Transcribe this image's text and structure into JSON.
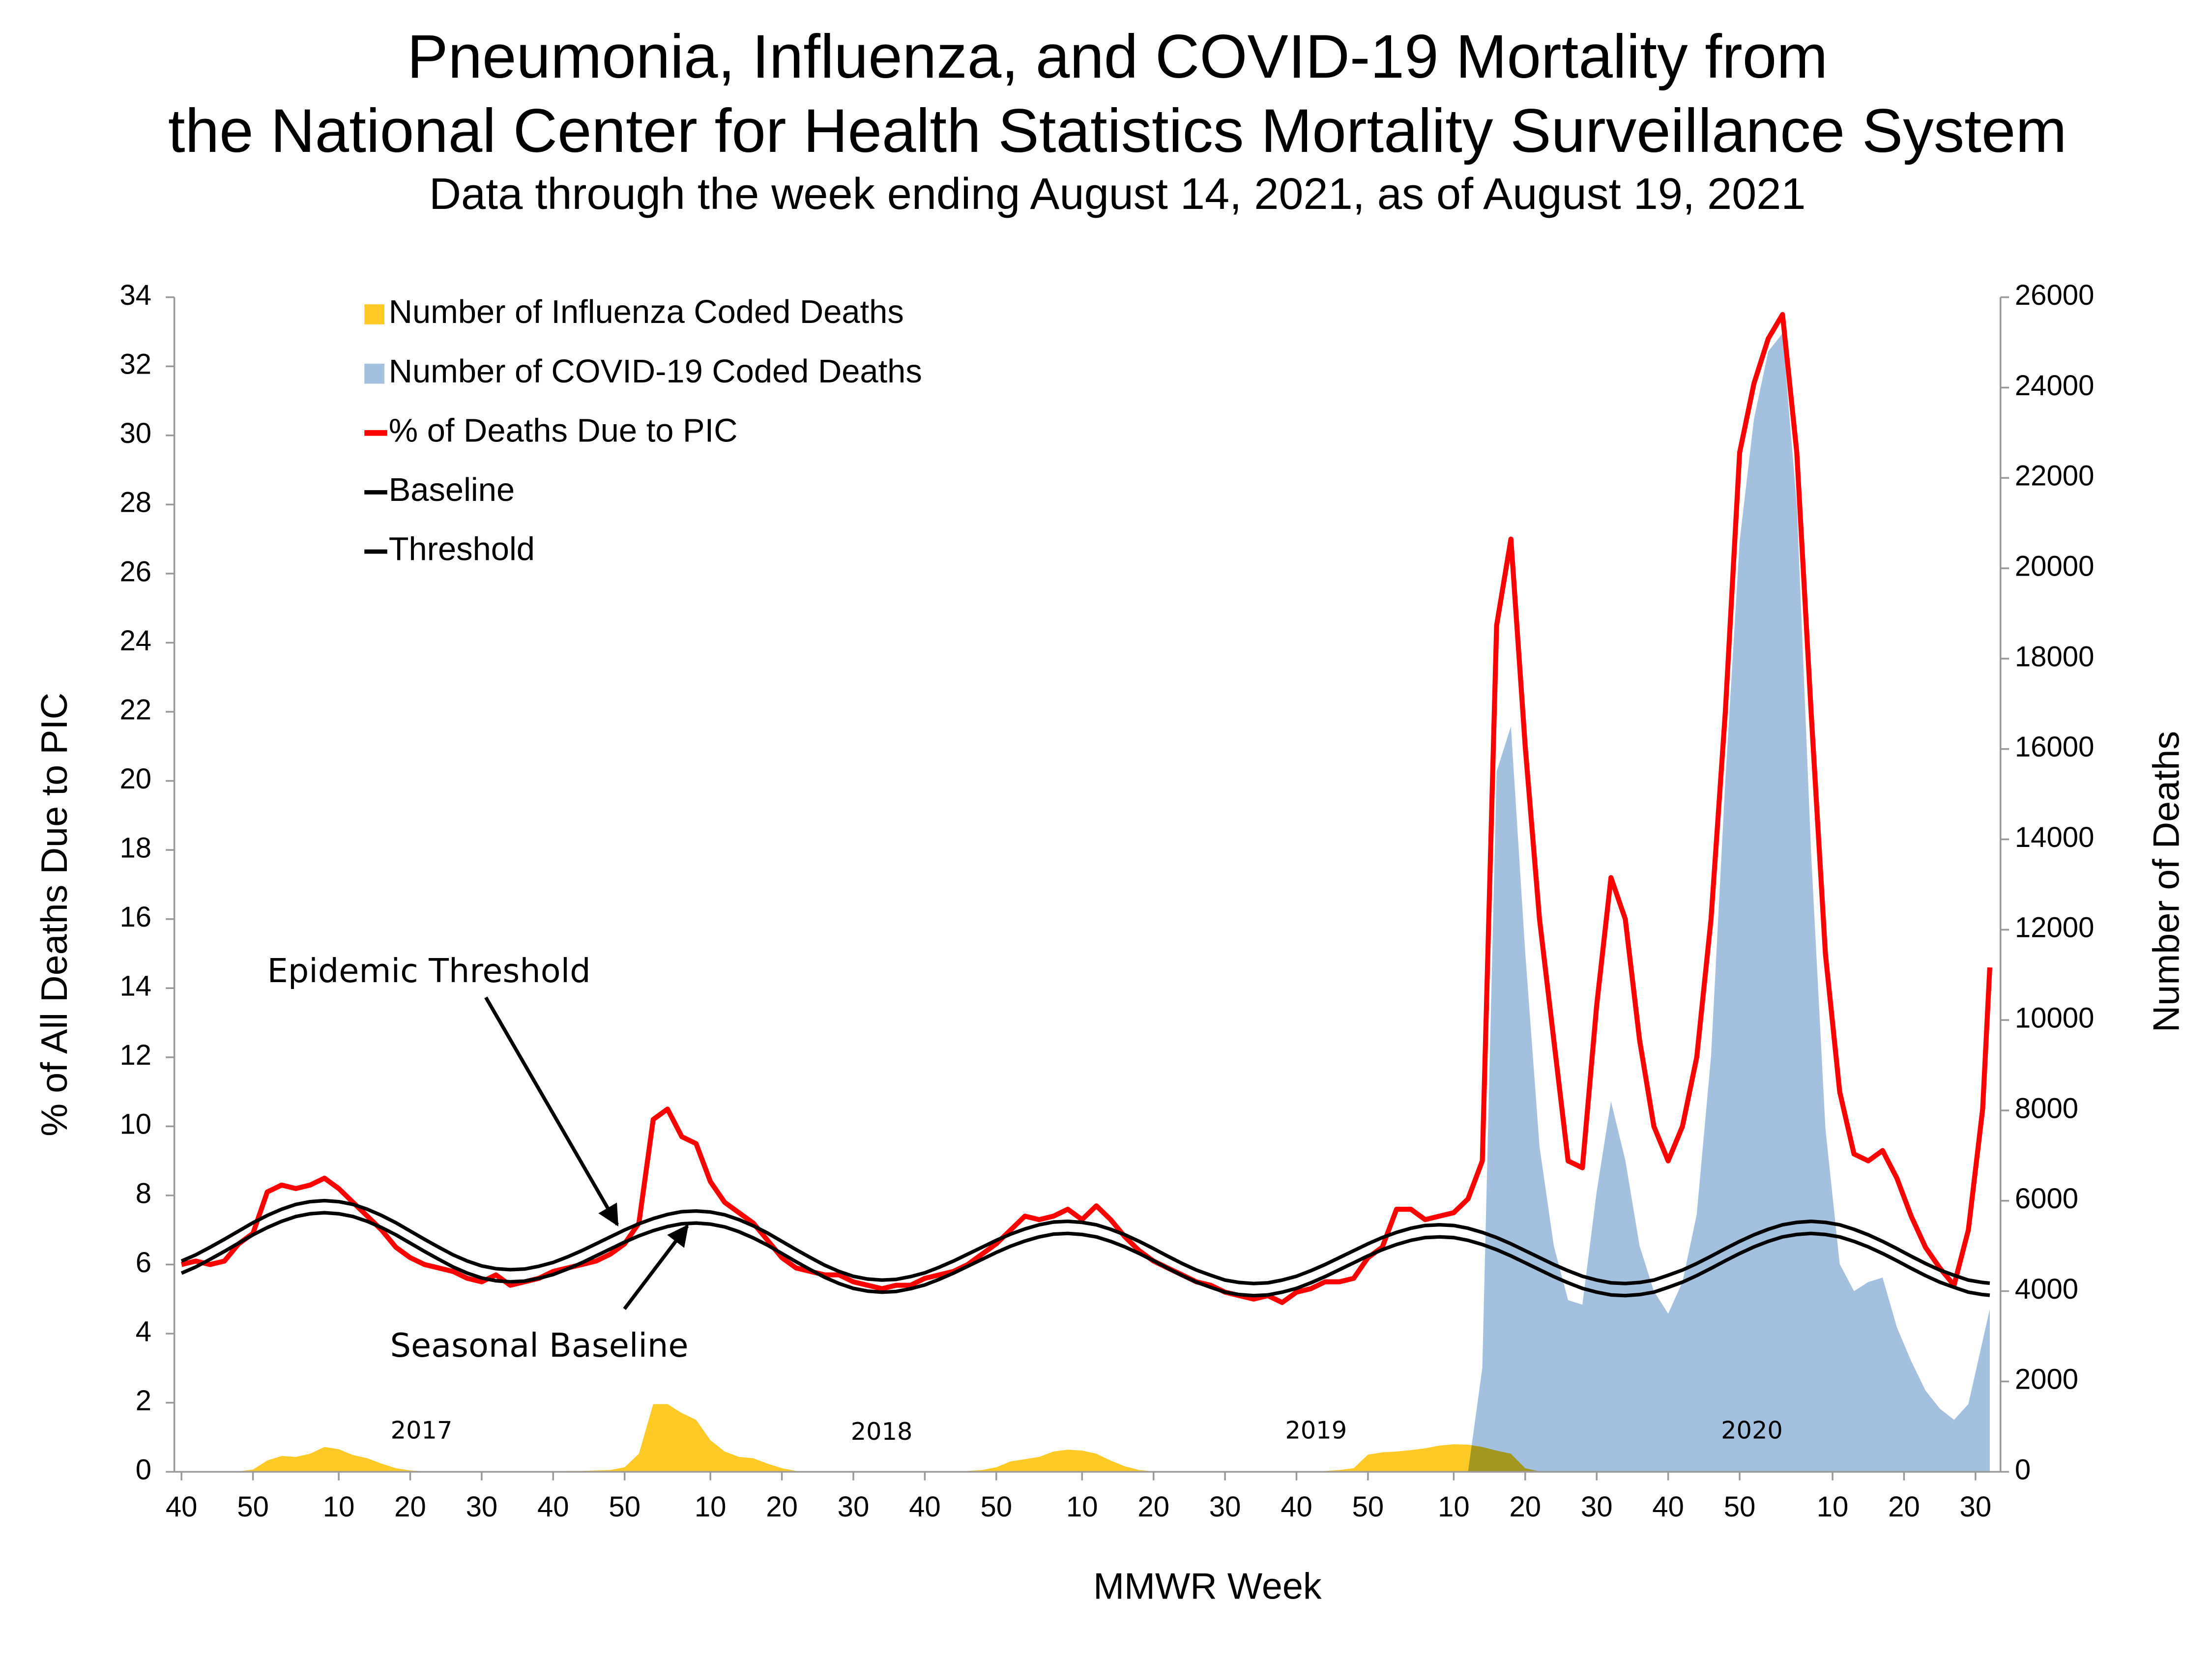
{
  "chart_data": {
    "type": "line",
    "title": [
      "Pneumonia, Influenza, and COVID-19 Mortality from",
      "the National Center for Health Statistics Mortality Surveillance System"
    ],
    "subtitle": "Data through the week ending August 14, 2021, as of August 19, 2021",
    "x_label": "MMWR Week",
    "y_label": "% of All Deaths Due to PIC",
    "y2_label": "Number of Deaths",
    "annotations": [
      "Epidemic Threshold",
      "Seasonal Baseline"
    ],
    "year_labels": [
      "2017",
      "2018",
      "2019",
      "2020"
    ],
    "legend": "upper left",
    "xlim": [
      -1,
      254.5
    ],
    "xticks": [
      {
        "value": 0,
        "label": "40"
      },
      {
        "value": 10,
        "label": "50"
      },
      {
        "value": 22,
        "label": "10"
      },
      {
        "value": 32,
        "label": "20"
      },
      {
        "value": 42,
        "label": "30"
      },
      {
        "value": 52,
        "label": "40"
      },
      {
        "value": 62,
        "label": "50"
      },
      {
        "value": 74,
        "label": "10"
      },
      {
        "value": 84,
        "label": "20"
      },
      {
        "value": 94,
        "label": "30"
      },
      {
        "value": 104,
        "label": "40"
      },
      {
        "value": 114,
        "label": "50"
      },
      {
        "value": 126,
        "label": "10"
      },
      {
        "value": 136,
        "label": "20"
      },
      {
        "value": 146,
        "label": "30"
      },
      {
        "value": 156,
        "label": "40"
      },
      {
        "value": 166,
        "label": "50"
      },
      {
        "value": 178,
        "label": "10"
      },
      {
        "value": 188,
        "label": "20"
      },
      {
        "value": 198,
        "label": "30"
      },
      {
        "value": 208,
        "label": "40"
      },
      {
        "value": 218,
        "label": "50"
      },
      {
        "value": 231,
        "label": "10"
      },
      {
        "value": 241,
        "label": "20"
      },
      {
        "value": 251,
        "label": "30"
      }
    ],
    "ylim": [
      0,
      34
    ],
    "yticks": [
      0,
      2,
      4,
      6,
      8,
      10,
      12,
      14,
      16,
      18,
      20,
      22,
      24,
      26,
      28,
      30,
      32,
      34
    ],
    "y2lim": [
      0,
      26000
    ],
    "y2ticks": [
      0,
      2000,
      4000,
      6000,
      8000,
      10000,
      12000,
      14000,
      16000,
      18000,
      20000,
      22000,
      24000,
      26000
    ],
    "x": [
      0,
      2,
      4,
      6,
      8,
      10,
      12,
      14,
      16,
      18,
      20,
      22,
      24,
      26,
      28,
      30,
      32,
      34,
      36,
      38,
      40,
      42,
      44,
      46,
      48,
      50,
      52,
      54,
      56,
      58,
      60,
      62,
      64,
      66,
      68,
      70,
      72,
      74,
      76,
      78,
      80,
      82,
      84,
      86,
      88,
      90,
      92,
      94,
      96,
      98,
      100,
      102,
      104,
      106,
      108,
      110,
      112,
      114,
      116,
      118,
      120,
      122,
      124,
      126,
      128,
      130,
      132,
      134,
      136,
      138,
      140,
      142,
      144,
      146,
      148,
      150,
      152,
      154,
      156,
      158,
      160,
      162,
      164,
      166,
      168,
      170,
      172,
      174,
      176,
      178,
      180,
      182,
      184,
      186,
      188,
      190,
      192,
      194,
      196,
      198,
      200,
      202,
      204,
      206,
      208,
      210,
      212,
      214,
      216,
      218,
      220,
      222,
      224,
      226,
      228,
      230,
      232,
      234,
      236,
      238,
      240,
      242,
      244,
      246,
      248,
      250,
      252,
      253
    ],
    "series": [
      {
        "name": "Number of Influenza Coded Deaths",
        "type": "area",
        "axis": "y2",
        "color": "#FFC926",
        "values": [
          0,
          0,
          0,
          0,
          10,
          50,
          250,
          350,
          330,
          400,
          550,
          500,
          370,
          300,
          180,
          80,
          30,
          10,
          0,
          0,
          0,
          0,
          0,
          0,
          0,
          10,
          10,
          20,
          20,
          30,
          40,
          100,
          400,
          1500,
          1500,
          1300,
          1150,
          700,
          450,
          330,
          300,
          180,
          80,
          20,
          0,
          0,
          0,
          0,
          0,
          0,
          0,
          0,
          0,
          0,
          10,
          20,
          40,
          100,
          230,
          280,
          330,
          450,
          490,
          470,
          400,
          250,
          120,
          40,
          10,
          0,
          0,
          0,
          0,
          0,
          0,
          0,
          0,
          0,
          0,
          10,
          20,
          40,
          80,
          380,
          430,
          450,
          480,
          520,
          580,
          610,
          600,
          550,
          470,
          400,
          80,
          10,
          0,
          0,
          0,
          0,
          0,
          0,
          0,
          0,
          0,
          0,
          0,
          0,
          0,
          0,
          0,
          0,
          0,
          0,
          0,
          0,
          0,
          0,
          0,
          0,
          0,
          0,
          0,
          0,
          0,
          0,
          0,
          0
        ]
      },
      {
        "name": "Number of COVID-19 Coded Deaths",
        "type": "area",
        "axis": "y2",
        "color": "#A3C0DF",
        "values": [
          0,
          0,
          0,
          0,
          0,
          0,
          0,
          0,
          0,
          0,
          0,
          0,
          0,
          0,
          0,
          0,
          0,
          0,
          0,
          0,
          0,
          0,
          0,
          0,
          0,
          0,
          0,
          0,
          0,
          0,
          0,
          0,
          0,
          0,
          0,
          0,
          0,
          0,
          0,
          0,
          0,
          0,
          0,
          0,
          0,
          0,
          0,
          0,
          0,
          0,
          0,
          0,
          0,
          0,
          0,
          0,
          0,
          0,
          0,
          0,
          0,
          0,
          0,
          0,
          0,
          0,
          0,
          0,
          0,
          0,
          0,
          0,
          0,
          0,
          0,
          0,
          0,
          0,
          0,
          0,
          0,
          0,
          0,
          0,
          0,
          0,
          0,
          0,
          0,
          0,
          0,
          2300,
          15500,
          16500,
          11500,
          7200,
          5000,
          3800,
          3700,
          6200,
          8200,
          6900,
          5000,
          4000,
          3500,
          4200,
          5700,
          9200,
          15300,
          20600,
          23300,
          24800,
          25200,
          21400,
          13700,
          7600,
          4600,
          4000,
          4200,
          4300,
          3200,
          2450,
          1800,
          1400,
          1150,
          1500,
          2900,
          3600
        ]
      },
      {
        "name": "% of Deaths Due to PIC",
        "type": "line",
        "color": "#FF0000",
        "width": 3.5,
        "values": [
          6.0,
          6.1,
          6.0,
          6.1,
          6.6,
          6.9,
          8.1,
          8.3,
          8.2,
          8.3,
          8.5,
          8.2,
          7.8,
          7.4,
          7.0,
          6.5,
          6.2,
          6.0,
          5.9,
          5.8,
          5.6,
          5.5,
          5.7,
          5.4,
          5.5,
          5.6,
          5.8,
          5.9,
          6.0,
          6.1,
          6.3,
          6.6,
          7.2,
          10.2,
          10.5,
          9.7,
          9.5,
          8.4,
          7.8,
          7.5,
          7.2,
          6.7,
          6.2,
          5.9,
          5.8,
          5.7,
          5.7,
          5.5,
          5.4,
          5.3,
          5.4,
          5.4,
          5.6,
          5.7,
          5.8,
          6.0,
          6.3,
          6.6,
          7.0,
          7.4,
          7.3,
          7.4,
          7.6,
          7.3,
          7.7,
          7.3,
          6.8,
          6.4,
          6.1,
          5.9,
          5.7,
          5.5,
          5.4,
          5.2,
          5.1,
          5.0,
          5.1,
          4.9,
          5.2,
          5.3,
          5.5,
          5.5,
          5.6,
          6.2,
          6.5,
          7.6,
          7.6,
          7.3,
          7.4,
          7.5,
          7.9,
          9.0,
          24.5,
          27.0,
          21.0,
          16.0,
          12.5,
          9.0,
          8.8,
          13.5,
          17.2,
          16.0,
          12.5,
          10.0,
          9.0,
          10.0,
          12.0,
          16.0,
          22.0,
          29.5,
          31.5,
          32.8,
          33.5,
          29.5,
          22.0,
          15.0,
          11.0,
          9.2,
          9.0,
          9.3,
          8.5,
          7.4,
          6.5,
          5.9,
          5.4,
          7.0,
          10.5,
          14.6
        ]
      },
      {
        "name": "Baseline",
        "type": "line",
        "color": "#000000",
        "width": 2.5,
        "values": [
          5.75,
          5.93,
          6.15,
          6.38,
          6.62,
          6.86,
          7.07,
          7.25,
          7.39,
          7.47,
          7.5,
          7.47,
          7.39,
          7.25,
          7.07,
          6.86,
          6.62,
          6.38,
          6.15,
          5.93,
          5.75,
          5.61,
          5.53,
          5.5,
          5.52,
          5.6,
          5.71,
          5.87,
          6.05,
          6.25,
          6.45,
          6.65,
          6.83,
          6.98,
          7.1,
          7.18,
          7.2,
          7.17,
          7.09,
          6.95,
          6.77,
          6.56,
          6.32,
          6.08,
          5.85,
          5.63,
          5.45,
          5.31,
          5.23,
          5.2,
          5.22,
          5.3,
          5.41,
          5.57,
          5.75,
          5.95,
          6.15,
          6.35,
          6.53,
          6.68,
          6.8,
          6.88,
          6.9,
          6.87,
          6.8,
          6.67,
          6.51,
          6.32,
          6.11,
          5.89,
          5.68,
          5.49,
          5.34,
          5.2,
          5.13,
          5.1,
          5.12,
          5.2,
          5.31,
          5.47,
          5.65,
          5.85,
          6.05,
          6.25,
          6.43,
          6.58,
          6.7,
          6.78,
          6.8,
          6.78,
          6.7,
          6.58,
          6.43,
          6.25,
          6.05,
          5.85,
          5.65,
          5.47,
          5.31,
          5.2,
          5.12,
          5.1,
          5.13,
          5.2,
          5.34,
          5.49,
          5.68,
          5.89,
          6.11,
          6.32,
          6.51,
          6.67,
          6.8,
          6.87,
          6.9,
          6.87,
          6.8,
          6.67,
          6.51,
          6.32,
          6.11,
          5.89,
          5.68,
          5.49,
          5.34,
          5.2,
          5.13,
          5.11
        ]
      },
      {
        "name": "Threshold",
        "type": "line",
        "color": "#000000",
        "width": 2.5,
        "values": [
          6.1,
          6.28,
          6.5,
          6.73,
          6.97,
          7.21,
          7.42,
          7.6,
          7.74,
          7.82,
          7.85,
          7.82,
          7.74,
          7.6,
          7.42,
          7.21,
          6.97,
          6.73,
          6.5,
          6.28,
          6.1,
          5.96,
          5.88,
          5.85,
          5.87,
          5.95,
          6.06,
          6.22,
          6.4,
          6.6,
          6.8,
          7.0,
          7.18,
          7.33,
          7.45,
          7.53,
          7.55,
          7.52,
          7.44,
          7.3,
          7.12,
          6.91,
          6.67,
          6.43,
          6.2,
          5.98,
          5.8,
          5.66,
          5.58,
          5.55,
          5.57,
          5.65,
          5.76,
          5.92,
          6.1,
          6.3,
          6.5,
          6.7,
          6.88,
          7.03,
          7.15,
          7.23,
          7.25,
          7.22,
          7.15,
          7.02,
          6.86,
          6.67,
          6.46,
          6.24,
          6.03,
          5.84,
          5.69,
          5.55,
          5.48,
          5.45,
          5.47,
          5.55,
          5.66,
          5.82,
          6.0,
          6.2,
          6.4,
          6.6,
          6.78,
          6.93,
          7.05,
          7.13,
          7.15,
          7.13,
          7.05,
          6.93,
          6.78,
          6.6,
          6.4,
          6.2,
          6.0,
          5.82,
          5.66,
          5.55,
          5.47,
          5.45,
          5.48,
          5.55,
          5.69,
          5.84,
          6.03,
          6.24,
          6.46,
          6.67,
          6.86,
          7.02,
          7.15,
          7.22,
          7.25,
          7.22,
          7.15,
          7.02,
          6.86,
          6.67,
          6.46,
          6.24,
          6.03,
          5.84,
          5.69,
          5.55,
          5.48,
          5.46
        ]
      }
    ]
  }
}
